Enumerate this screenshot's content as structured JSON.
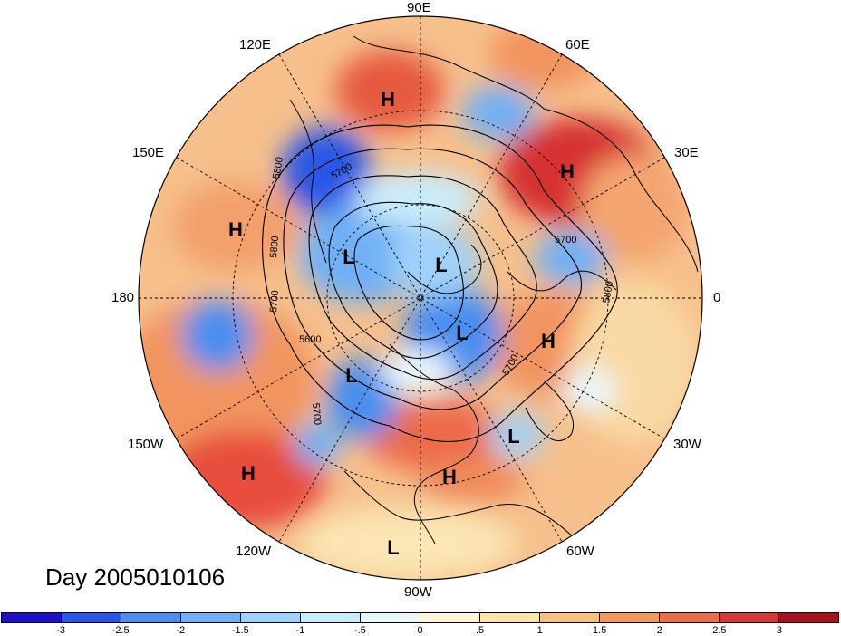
{
  "title": "Day 2005010106",
  "longitude_labels": [
    "90E",
    "60E",
    "120E",
    "150E",
    "30E",
    "180",
    "0",
    "150W",
    "30W",
    "120W",
    "60W",
    "90W"
  ],
  "pressure_centers": [
    "H",
    "H",
    "H",
    "L",
    "L",
    "L",
    "H",
    "L",
    "L",
    "H",
    "L"
  ],
  "contour_labels": [
    "5800",
    "5700",
    "5800",
    "5700",
    "5700",
    "5600",
    "5700",
    "5700",
    "5800"
  ],
  "colorbar": {
    "tick_labels": [
      "-3",
      "-2.5",
      "-2",
      "-1.5",
      "-1",
      "-.5",
      "0",
      ".5",
      "1",
      "1.5",
      "2",
      "2.5",
      "3"
    ],
    "colors": [
      "#1f0fc7",
      "#2b57e6",
      "#4a8ef0",
      "#6fb0f5",
      "#9fd2fa",
      "#c9ecfc",
      "#eaf8fd",
      "#fdf6d8",
      "#fbe5a8",
      "#f7c27d",
      "#f29a5e",
      "#eb6d4a",
      "#d93838",
      "#a8121f"
    ]
  },
  "contour_color": "#000000",
  "background_colors": {
    "warm": "#f4b07e",
    "cool": "#7cb8f2",
    "neutral": "#fbe8b5"
  }
}
